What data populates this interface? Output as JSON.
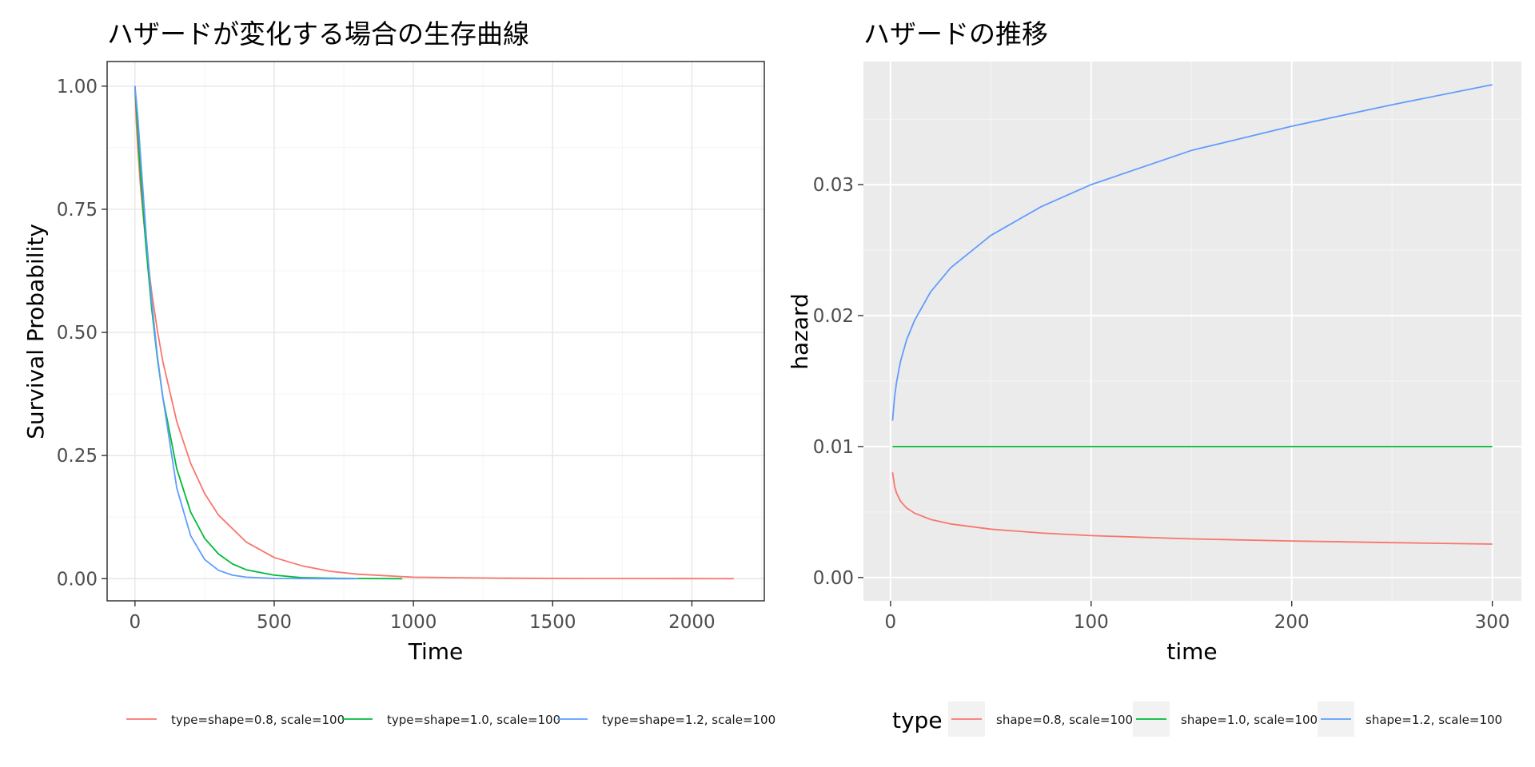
{
  "chart_data": [
    {
      "type": "line",
      "title": "ハザードが変化する場合の生存曲線",
      "xlabel": "Time",
      "ylabel": "Survival Probability",
      "xlim": [
        -100,
        2260
      ],
      "ylim": [
        -0.045,
        1.05
      ],
      "x_ticks": [
        0,
        500,
        1000,
        1500,
        2000
      ],
      "x_tick_labels": [
        "0",
        "500",
        "1000",
        "1500",
        "2000"
      ],
      "y_ticks": [
        0,
        0.25,
        0.5,
        0.75,
        1.0
      ],
      "y_tick_labels": [
        "0.00",
        "0.25",
        "0.50",
        "0.75",
        "1.00"
      ],
      "grid": true,
      "theme": "bw",
      "legend_position": "bottom",
      "series": [
        {
          "name": "type=shape=0.8, scale=100",
          "color": "#F8766D",
          "x": [
            0,
            5,
            10,
            20,
            40,
            60,
            80,
            100,
            150,
            200,
            250,
            300,
            400,
            500,
            600,
            700,
            800,
            1000,
            1300,
            1600,
            2000,
            2150
          ],
          "y": [
            1.0,
            0.925,
            0.875,
            0.795,
            0.675,
            0.582,
            0.505,
            0.441,
            0.319,
            0.234,
            0.173,
            0.129,
            0.074,
            0.043,
            0.026,
            0.015,
            0.009,
            0.003,
            0.001,
            0.0003,
            0.0001,
            0.0
          ]
        },
        {
          "name": "type=shape=1.0, scale=100",
          "color": "#00BA38",
          "x": [
            0,
            20,
            40,
            60,
            80,
            100,
            150,
            200,
            250,
            300,
            350,
            400,
            500,
            600,
            700,
            800,
            960
          ],
          "y": [
            1.0,
            0.819,
            0.67,
            0.549,
            0.449,
            0.368,
            0.223,
            0.135,
            0.082,
            0.05,
            0.03,
            0.018,
            0.007,
            0.002,
            0.001,
            0.0003,
            0.0
          ]
        },
        {
          "name": "type=shape=1.2, scale=100",
          "color": "#619CFF",
          "x": [
            0,
            10,
            20,
            40,
            60,
            80,
            100,
            150,
            200,
            250,
            300,
            350,
            400,
            500,
            600,
            700,
            800
          ],
          "y": [
            1.0,
            0.939,
            0.858,
            0.698,
            0.564,
            0.454,
            0.368,
            0.184,
            0.087,
            0.039,
            0.017,
            0.007,
            0.003,
            0.0004,
            0.0001,
            0.0,
            0.0
          ]
        }
      ]
    },
    {
      "type": "line",
      "title": "ハザードの推移",
      "xlabel": "time",
      "ylabel": "hazard",
      "xlim": [
        -13.5,
        314.5
      ],
      "ylim": [
        -0.00178,
        0.0394
      ],
      "x_ticks": [
        0,
        100,
        200,
        300
      ],
      "x_tick_labels": [
        "0",
        "100",
        "200",
        "300"
      ],
      "y_ticks": [
        0,
        0.01,
        0.02,
        0.03
      ],
      "y_tick_labels": [
        "0.00",
        "0.01",
        "0.02",
        "0.03"
      ],
      "grid": true,
      "theme": "gray",
      "legend_position": "bottom",
      "legend_title": "type",
      "series": [
        {
          "name": "shape=0.8, scale=100",
          "color": "#F8766D",
          "x": [
            1,
            2,
            3,
            5,
            8,
            12,
            20,
            30,
            50,
            75,
            100,
            150,
            200,
            250,
            300
          ],
          "y": [
            0.00803,
            0.00699,
            0.00645,
            0.00583,
            0.00531,
            0.00491,
            0.00443,
            0.00409,
            0.00369,
            0.0034,
            0.0032,
            0.00295,
            0.00279,
            0.00266,
            0.00255
          ]
        },
        {
          "name": "shape=1.0, scale=100",
          "color": "#00BA38",
          "x": [
            1,
            300
          ],
          "y": [
            0.01,
            0.01
          ]
        },
        {
          "name": "shape=1.2, scale=100",
          "color": "#619CFF",
          "x": [
            1,
            2,
            3,
            5,
            8,
            12,
            20,
            30,
            50,
            75,
            100,
            150,
            200,
            250,
            300
          ],
          "y": [
            0.01197,
            0.01375,
            0.01491,
            0.01651,
            0.01813,
            0.01964,
            0.02182,
            0.02365,
            0.02612,
            0.02831,
            0.03,
            0.03261,
            0.03446,
            0.0361,
            0.03763
          ]
        }
      ]
    }
  ]
}
